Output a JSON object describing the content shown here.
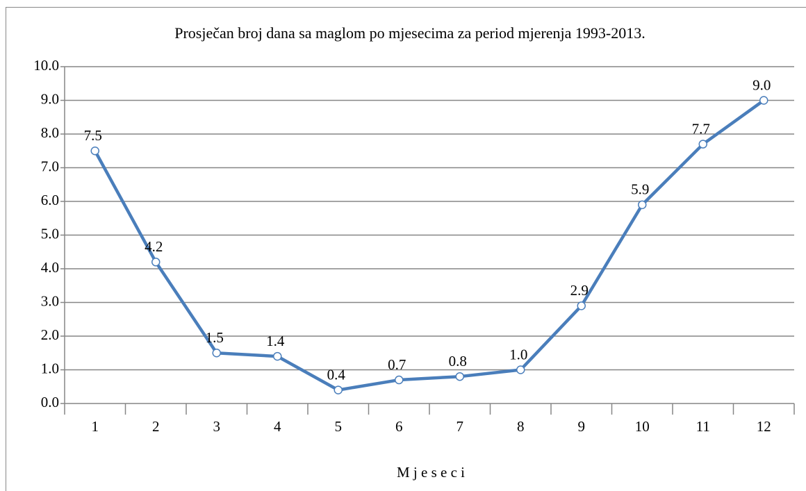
{
  "chart_data": {
    "type": "line",
    "title": "Prosječan broj dana sa maglom po mjesecima za period mjerenja 1993-2013.",
    "x_label": "M j e s e c i",
    "categories": [
      "1",
      "2",
      "3",
      "4",
      "5",
      "6",
      "7",
      "8",
      "9",
      "10",
      "11",
      "12"
    ],
    "series": [
      {
        "color": "#4a7ebb",
        "values": [
          7.5,
          4.2,
          1.5,
          1.4,
          0.4,
          0.7,
          0.8,
          1.0,
          2.9,
          5.9,
          7.7,
          9.0
        ],
        "value_labels": [
          "7.5",
          "4.2",
          "1.5",
          "1.4",
          "0.4",
          "0.7",
          "0.8",
          "1.0",
          "2.9",
          "5.9",
          "7.7",
          "9.0"
        ]
      }
    ],
    "ylim": [
      0,
      10
    ],
    "yticks": [
      {
        "value": 0,
        "label": "0.0"
      },
      {
        "value": 1,
        "label": "1.0"
      },
      {
        "value": 2,
        "label": "2.0"
      },
      {
        "value": 3,
        "label": "3.0"
      },
      {
        "value": 4,
        "label": "4.0"
      },
      {
        "value": 5,
        "label": "5.0"
      },
      {
        "value": 6,
        "label": "6.0"
      },
      {
        "value": 7,
        "label": "7.0"
      },
      {
        "value": 8,
        "label": "8.0"
      },
      {
        "value": 9,
        "label": "9.0"
      },
      {
        "value": 10,
        "label": "10.0"
      }
    ],
    "grid": true
  }
}
